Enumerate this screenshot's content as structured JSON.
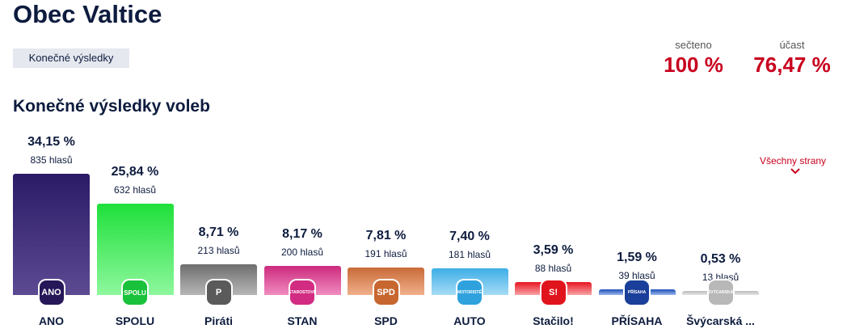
{
  "header": {
    "title": "Obec Valtice",
    "badge": "Konečné výsledky"
  },
  "stats": {
    "counted_label": "sečteno",
    "counted_value": "100 %",
    "turnout_label": "účast",
    "turnout_value": "76,47 %"
  },
  "section_title": "Konečné výsledky voleb",
  "more_link": "Všechny strany",
  "chart_data": {
    "type": "bar",
    "categories": [
      "ANO",
      "SPOLU",
      "Piráti",
      "STAN",
      "SPD",
      "AUTO",
      "Stačilo!",
      "PŘÍSAHA",
      "Švýcarská ..."
    ],
    "values": [
      34.15,
      25.84,
      8.71,
      8.17,
      7.81,
      7.4,
      3.59,
      1.59,
      0.53
    ],
    "value_labels": [
      "34,15 %",
      "25,84 %",
      "8,71 %",
      "8,17 %",
      "7,81 %",
      "7,40 %",
      "3,59 %",
      "1,59 %",
      "0,53 %"
    ],
    "votes": [
      "835 hlasů",
      "632 hlasů",
      "213 hlasů",
      "200 hlasů",
      "191 hlasů",
      "181 hlasů",
      "88 hlasů",
      "39 hlasů",
      "13 hlasů"
    ],
    "logos": [
      "ANO",
      "SPOLU",
      "P",
      "STAROSTOVÉ",
      "SPD",
      "MOTORISTÉ",
      "S!",
      "PŘÍSAHA",
      "ŠVÝCARSKÁ"
    ],
    "colors_top": [
      "#2b1a66",
      "#1fe03a",
      "#6e6e6e",
      "#cc2a7e",
      "#c96a38",
      "#3eaee6",
      "#e8151f",
      "#1d4fb8",
      "#bbbbbb"
    ],
    "colors_bottom": [
      "#5c4a93",
      "#8ef79d",
      "#b7b7b7",
      "#f08cc0",
      "#f0b08c",
      "#a6dcf6",
      "#f7a3a6",
      "#9bb7ec",
      "#e6e6e6"
    ],
    "logo_colors": [
      "#261758",
      "#19c23a",
      "#5a5a5a",
      "#d22c82",
      "#c7672f",
      "#2fa2de",
      "#e0141d",
      "#1a3f9a",
      "#b8b8b8"
    ],
    "ylim": [
      0,
      34.15
    ]
  }
}
